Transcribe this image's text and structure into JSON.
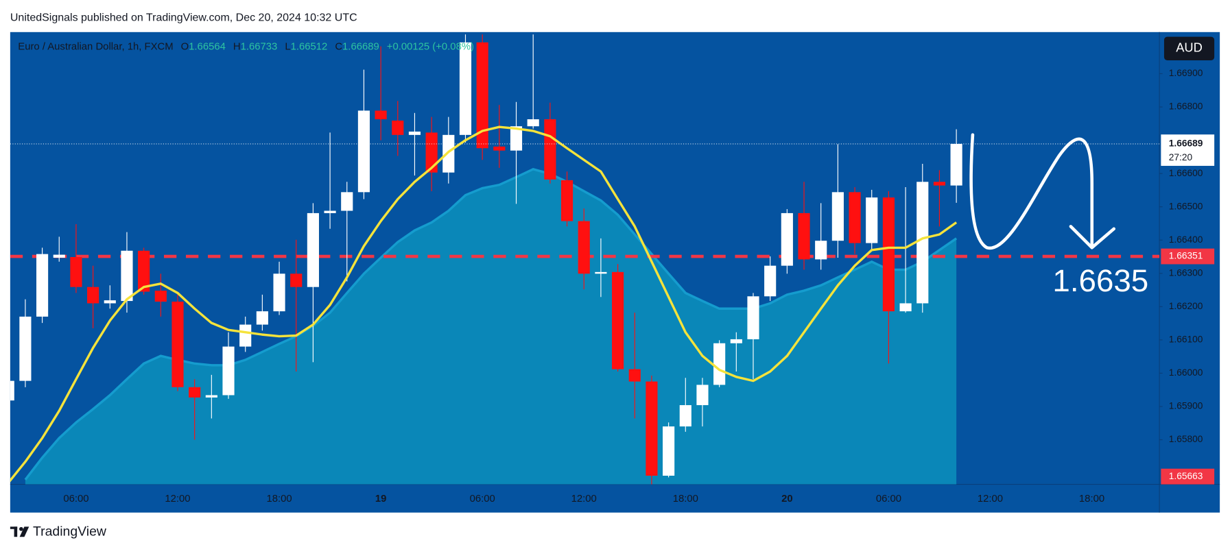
{
  "chart_data": {
    "type": "candlestick",
    "header": "UnitedSignals published on TradingView.com, Dec 20, 2024 10:32 UTC",
    "title": "Euro / Australian Dollar, 1h, FXCM",
    "legend_labels": {
      "open": "O",
      "high": "H",
      "low": "L",
      "close": "C"
    },
    "change": "+0.00125 (+0.08%)",
    "currency": "AUD",
    "countdown": "27:20",
    "annotation": "1.6635",
    "footer": "TradingView",
    "colors": {
      "up": "#ffffff",
      "down": "#ff1010",
      "line": "#f5e33b",
      "area": "#0a87b8",
      "area_edge": "#159cce",
      "background": "#0553a0"
    },
    "level": {
      "value": 1.66351,
      "color": "#f23645"
    },
    "ylim": [
      1.65666,
      1.67025
    ],
    "yticks": [
      {
        "value": 1.669,
        "label": "1.66900"
      },
      {
        "value": 1.668,
        "label": "1.66800"
      },
      {
        "value": 1.666,
        "label": "1.66600"
      },
      {
        "value": 1.665,
        "label": "1.66500"
      },
      {
        "value": 1.664,
        "label": "1.66400"
      },
      {
        "value": 1.663,
        "label": "1.66300"
      },
      {
        "value": 1.662,
        "label": "1.66200"
      },
      {
        "value": 1.661,
        "label": "1.66100"
      },
      {
        "value": 1.66,
        "label": "1.66000"
      },
      {
        "value": 1.659,
        "label": "1.65900"
      },
      {
        "value": 1.658,
        "label": "1.65800"
      }
    ],
    "categories": [
      null,
      null,
      null,
      null,
      "06:00",
      null,
      null,
      null,
      null,
      null,
      "12:00",
      null,
      null,
      null,
      null,
      null,
      "18:00",
      null,
      null,
      null,
      null,
      null,
      "19",
      null,
      null,
      null,
      null,
      null,
      "06:00",
      null,
      null,
      null,
      null,
      null,
      "12:00",
      null,
      null,
      null,
      null,
      null,
      "18:00",
      null,
      null,
      null,
      null,
      null,
      "20",
      null,
      null,
      null,
      null,
      null,
      "06:00",
      null,
      null,
      null,
      null,
      null,
      "12:00",
      null,
      null,
      null,
      null,
      null,
      "18:00",
      null,
      null,
      null,
      null
    ],
    "open": [
      1.65918,
      1.65977,
      1.6617,
      1.66347,
      1.66349,
      1.66259,
      1.6621,
      1.66217,
      1.66368,
      1.66248,
      1.66215,
      1.65958,
      1.65927,
      1.65934,
      1.6608,
      1.66146,
      1.66186,
      1.66299,
      1.66259,
      1.66481,
      1.66488,
      1.66544,
      1.66789,
      1.66759,
      1.66716,
      1.66723,
      1.66603,
      1.66716,
      1.66994,
      1.66681,
      1.66669,
      1.66742,
      1.66763,
      1.6658,
      1.66457,
      1.66299,
      1.66304,
      1.66012,
      1.65975,
      1.65692,
      1.6584,
      1.65904,
      1.65965,
      1.6609,
      1.66102,
      1.66231,
      1.66323,
      1.66481,
      1.66342,
      1.66398,
      1.66544,
      1.66391,
      1.66528,
      1.66186,
      1.6621,
      1.66575,
      1.66564,
      null,
      null,
      null,
      null,
      null,
      null,
      null,
      null,
      null,
      null,
      null,
      null
    ],
    "high": [
      1.66005,
      1.66222,
      1.66377,
      1.6641,
      1.66448,
      1.66323,
      1.66264,
      1.66424,
      1.66377,
      1.66299,
      1.66236,
      1.65982,
      1.65995,
      1.66123,
      1.6617,
      1.66236,
      1.66335,
      1.66401,
      1.66511,
      1.66723,
      1.66575,
      1.66912,
      1.66982,
      1.66818,
      1.66782,
      1.6677,
      1.6677,
      1.67018,
      1.67018,
      1.66806,
      1.66815,
      1.67018,
      1.66813,
      1.66606,
      1.66495,
      1.66405,
      1.66328,
      1.66182,
      1.65993,
      1.65852,
      1.65986,
      1.65986,
      1.66099,
      1.66123,
      1.66241,
      1.66351,
      1.66493,
      1.66575,
      1.66511,
      1.66688,
      1.66559,
      1.66551,
      1.66547,
      1.66559,
      1.66629,
      1.6661,
      1.66733,
      null,
      null,
      null,
      null,
      null,
      null,
      null,
      null,
      null,
      null,
      null,
      null
    ],
    "low": [
      1.65911,
      1.65958,
      1.66151,
      1.66335,
      1.66241,
      1.66135,
      1.66194,
      1.66182,
      1.66236,
      1.6617,
      1.65946,
      1.658,
      1.65864,
      1.65923,
      1.66064,
      1.66128,
      1.66175,
      1.66005,
      1.66033,
      1.66434,
      1.66276,
      1.66523,
      1.667,
      1.66653,
      1.66594,
      1.66547,
      1.6657,
      1.66693,
      1.66641,
      1.66617,
      1.66509,
      1.66735,
      1.6657,
      1.66441,
      1.66252,
      1.66229,
      1.66005,
      1.65864,
      1.65663,
      1.65687,
      1.65824,
      1.6584,
      1.65958,
      1.66005,
      1.65982,
      1.66217,
      1.66299,
      1.66311,
      1.66311,
      1.66347,
      1.66358,
      1.6637,
      1.66029,
      1.66182,
      1.66182,
      1.66441,
      1.66512,
      null,
      null,
      null,
      null,
      null,
      null,
      null,
      null,
      null,
      null,
      null,
      null
    ],
    "close": [
      1.65977,
      1.6617,
      1.66358,
      1.66356,
      1.66259,
      1.6621,
      1.66219,
      1.66368,
      1.66245,
      1.66215,
      1.65958,
      1.65927,
      1.65934,
      1.6608,
      1.66146,
      1.66186,
      1.66299,
      1.66259,
      1.66481,
      1.66488,
      1.66544,
      1.66789,
      1.66763,
      1.66716,
      1.66726,
      1.66603,
      1.66716,
      1.66994,
      1.66676,
      1.66669,
      1.66742,
      1.66763,
      1.66582,
      1.66457,
      1.66299,
      1.66304,
      1.66012,
      1.65975,
      1.65692,
      1.6584,
      1.65904,
      1.65965,
      1.6609,
      1.66102,
      1.66231,
      1.66323,
      1.66481,
      1.66342,
      1.66398,
      1.66544,
      1.66391,
      1.66528,
      1.66186,
      1.6621,
      1.66575,
      1.66564,
      1.66689,
      null,
      null,
      null,
      null,
      null,
      null,
      null,
      null,
      null,
      null,
      null,
      null
    ],
    "line_values": [
      1.65671,
      1.65734,
      1.65805,
      1.65887,
      1.65982,
      1.66076,
      1.66158,
      1.66222,
      1.66259,
      1.66269,
      1.66241,
      1.66194,
      1.66151,
      1.6613,
      1.66123,
      1.66116,
      1.66111,
      1.66113,
      1.66146,
      1.66205,
      1.66288,
      1.66382,
      1.66457,
      1.66523,
      1.66575,
      1.66617,
      1.66665,
      1.667,
      1.66728,
      1.6674,
      1.66735,
      1.66728,
      1.66712,
      1.66676,
      1.66641,
      1.66606,
      1.66523,
      1.66441,
      1.66335,
      1.66229,
      1.66123,
      1.66052,
      1.6601,
      1.65989,
      1.65977,
      1.66005,
      1.66052,
      1.66123,
      1.66194,
      1.66264,
      1.66323,
      1.6637,
      1.66377,
      1.66377,
      1.66405,
      1.66417,
      1.66453,
      null,
      null,
      null,
      null,
      null,
      null,
      null,
      null,
      null,
      null,
      null,
      null
    ],
    "area_values": [
      null,
      1.6568,
      1.65746,
      1.65805,
      1.65852,
      1.65892,
      1.65934,
      1.65982,
      1.66029,
      1.66052,
      1.6604,
      1.66029,
      1.66024,
      1.66024,
      1.6604,
      1.66064,
      1.66088,
      1.66111,
      1.66142,
      1.66182,
      1.66241,
      1.66299,
      1.66347,
      1.66394,
      1.66429,
      1.66453,
      1.66488,
      1.66535,
      1.66556,
      1.66566,
      1.66589,
      1.66613,
      1.66599,
      1.66575,
      1.66547,
      1.66519,
      1.66476,
      1.66417,
      1.66358,
      1.66299,
      1.66241,
      1.66217,
      1.66194,
      1.66194,
      1.66194,
      1.6621,
      1.66236,
      1.66248,
      1.66264,
      1.66288,
      1.66311,
      1.66335,
      1.66311,
      1.66311,
      1.66335,
      1.6637,
      1.66405,
      null,
      null,
      null,
      null,
      null,
      null,
      null,
      null,
      null,
      null,
      null,
      null
    ]
  }
}
